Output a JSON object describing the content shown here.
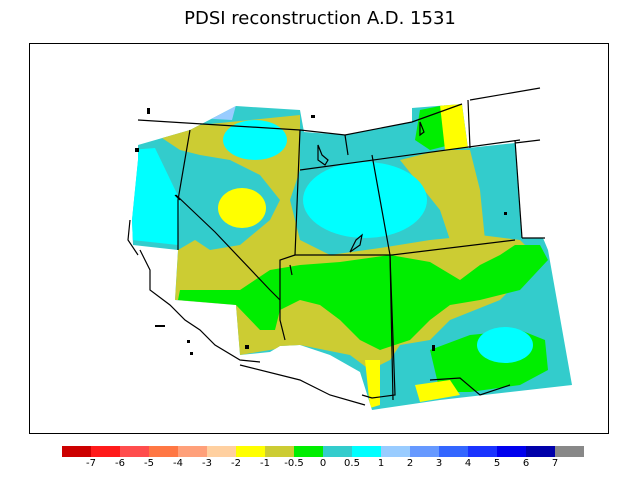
{
  "title": "PDSI reconstruction A.D. 1531",
  "legend": {
    "colors": [
      "#cc0000",
      "#ff1a1a",
      "#ff4d4d",
      "#ff7744",
      "#ffa07a",
      "#ffd0a0",
      "#ffff00",
      "#cccc33",
      "#00ee00",
      "#33cccc",
      "#00ffff",
      "#99ccff",
      "#6699ff",
      "#3366ff",
      "#1a33ff",
      "#0000ee",
      "#0000aa",
      "#888888"
    ],
    "tick_labels": [
      "-7",
      "-6",
      "-5",
      "-4",
      "-3",
      "-2",
      "-1",
      "-0.5",
      "0",
      "0.5",
      "1",
      "2",
      "3",
      "4",
      "5",
      "6",
      "7"
    ]
  },
  "map_colors": {
    "dry_yellow": "#ffff00",
    "olive": "#cccc33",
    "green": "#00ee00",
    "teal": "#33cccc",
    "cyan": "#00ffff",
    "light_blue": "#99ccff"
  }
}
